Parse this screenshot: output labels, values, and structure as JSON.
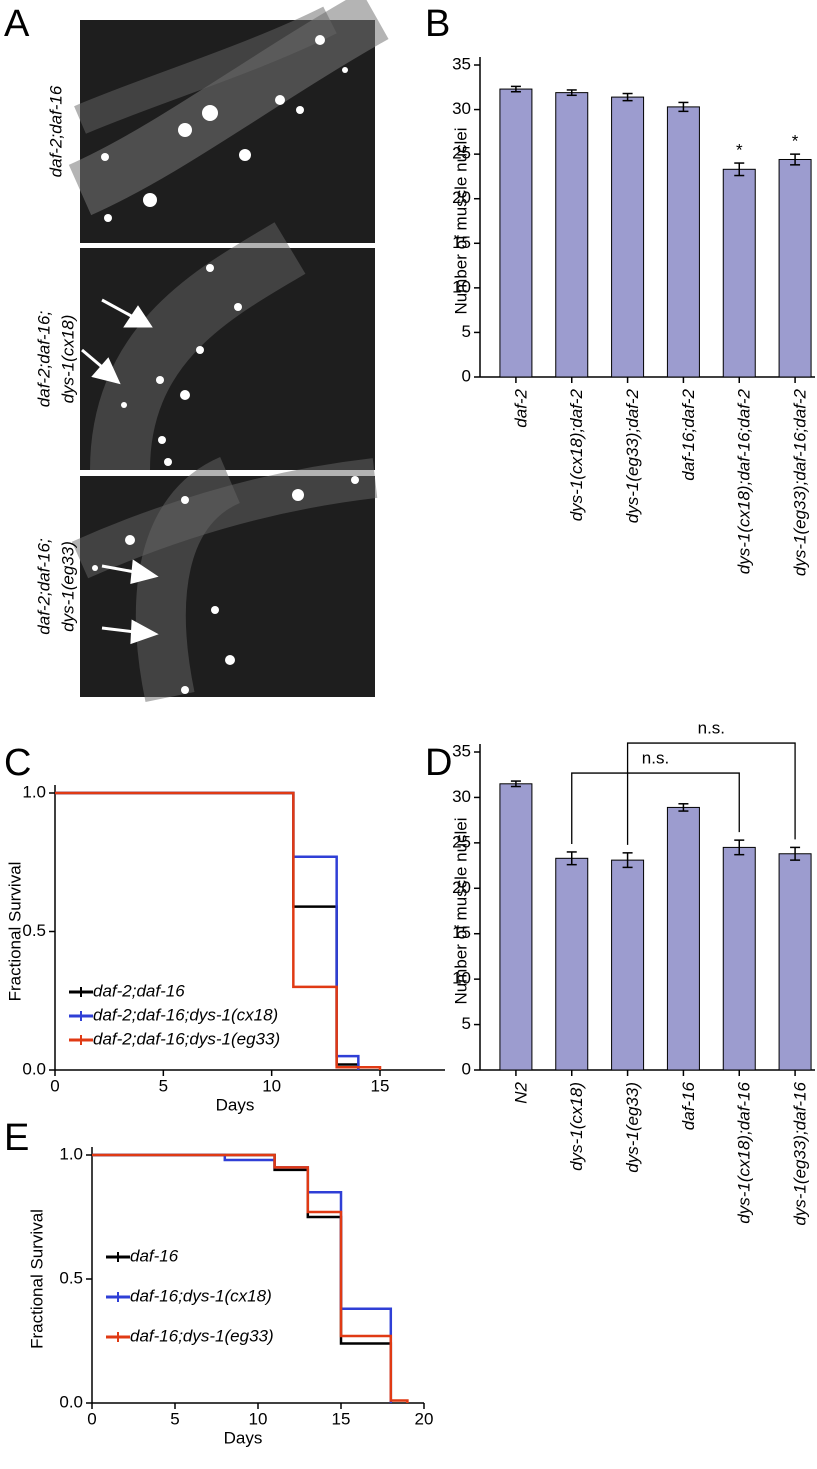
{
  "panel_a": {
    "label": "A",
    "images": [
      {
        "caption": [
          "daf-2;daf-16"
        ]
      },
      {
        "caption": [
          "daf-2;daf-16;",
          "dys-1(cx18)"
        ]
      },
      {
        "caption": [
          "daf-2;daf-16;",
          "dys-1(eg33)"
        ]
      }
    ]
  },
  "chart_data": [
    {
      "type": "bar",
      "panel_label": "B",
      "ylabel": "Number of muscle nuclei",
      "categories": [
        "daf-2",
        "dys-1(cx18);daf-2",
        "dys-1(eg33);daf-2",
        "daf-16;daf-2",
        "dys-1(cx18);daf-16;daf-2",
        "dys-1(eg33);daf-16;daf-2"
      ],
      "values": [
        32.3,
        31.9,
        31.4,
        30.3,
        23.3,
        24.4
      ],
      "errors": [
        0.3,
        0.3,
        0.4,
        0.5,
        0.7,
        0.6
      ],
      "markers": [
        null,
        null,
        null,
        null,
        "*",
        "*"
      ],
      "color": "#9c9ccf",
      "ylim": [
        0,
        35
      ],
      "yticks": [
        0,
        5,
        10,
        15,
        20,
        25,
        30,
        35
      ]
    },
    {
      "type": "step",
      "panel_label": "C",
      "xlabel": "Days",
      "ylabel": "Fractional Survival",
      "xlim": [
        0,
        18
      ],
      "xticks": [
        0,
        5,
        10,
        15
      ],
      "ylim": [
        0,
        1
      ],
      "yticks": [
        {
          "value": 0,
          "label": "0.0"
        },
        {
          "value": 0.5,
          "label": "0.5"
        },
        {
          "value": 1,
          "label": "1.0"
        }
      ],
      "legend": "bottom-left",
      "series": [
        {
          "name": "daf-2;daf-16",
          "color": "#000000",
          "x": [
            0,
            11,
            13,
            14
          ],
          "values": [
            1,
            0.59,
            0.02,
            0
          ]
        },
        {
          "name": "daf-2;daf-16;dys-1(cx18)",
          "color": "#2f3fd6",
          "x": [
            0,
            11,
            13,
            14
          ],
          "values": [
            1,
            0.77,
            0.05,
            0
          ]
        },
        {
          "name": "daf-2;daf-16;dys-1(eg33)",
          "color": "#e03a14",
          "x": [
            0,
            11,
            13,
            15
          ],
          "values": [
            1,
            0.3,
            0.01,
            0
          ]
        }
      ]
    },
    {
      "type": "bar",
      "panel_label": "D",
      "ylabel": "Number of muscle nuclei",
      "categories": [
        "N2",
        "dys-1(cx18)",
        "dys-1(eg33)",
        "daf-16",
        "dys-1(cx18);daf-16",
        "dys-1(eg33);daf-16"
      ],
      "values": [
        31.5,
        23.3,
        23.1,
        28.9,
        24.5,
        23.8
      ],
      "errors": [
        0.3,
        0.7,
        0.8,
        0.4,
        0.8,
        0.7
      ],
      "brackets": [
        {
          "between": [
            1,
            4
          ],
          "label": "n.s."
        },
        {
          "between": [
            2,
            5
          ],
          "label": "n.s."
        }
      ],
      "color": "#9c9ccf",
      "ylim": [
        0,
        35
      ],
      "yticks": [
        0,
        5,
        10,
        15,
        20,
        25,
        30,
        35
      ]
    },
    {
      "type": "step",
      "panel_label": "E",
      "xlabel": "Days",
      "ylabel": "Fractional Survival",
      "xlim": [
        0,
        20
      ],
      "xticks": [
        0,
        5,
        10,
        15,
        20
      ],
      "ylim": [
        0,
        1
      ],
      "yticks": [
        {
          "value": 0,
          "label": "0.0"
        },
        {
          "value": 0.5,
          "label": "0.5"
        },
        {
          "value": 1,
          "label": "1.0"
        }
      ],
      "legend": "bottom-left",
      "series": [
        {
          "name": "daf-16",
          "color": "#000000",
          "x": [
            0,
            11,
            13,
            15,
            18
          ],
          "values": [
            1,
            0.94,
            0.75,
            0.24,
            0
          ]
        },
        {
          "name": "daf-16;dys-1(cx18)",
          "color": "#2f3fd6",
          "x": [
            0,
            8,
            11,
            13,
            15,
            18
          ],
          "values": [
            1,
            0.98,
            0.95,
            0.85,
            0.38,
            0
          ]
        },
        {
          "name": "daf-16;dys-1(eg33)",
          "color": "#e03a14",
          "x": [
            0,
            8,
            11,
            13,
            15,
            18,
            19
          ],
          "values": [
            1,
            1,
            0.95,
            0.77,
            0.27,
            0.01,
            0
          ]
        }
      ]
    }
  ]
}
